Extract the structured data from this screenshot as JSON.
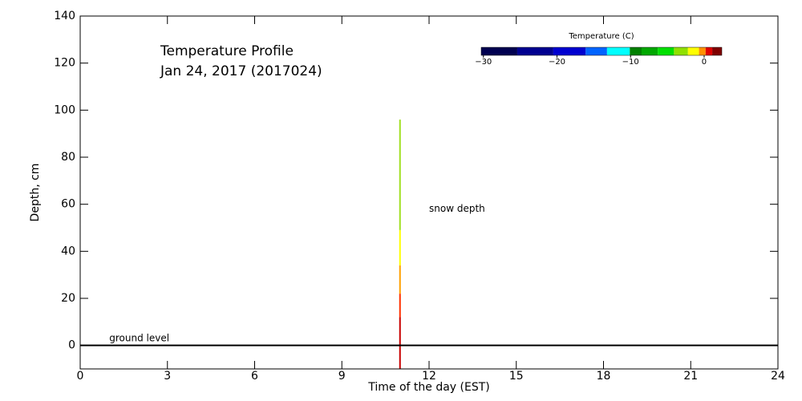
{
  "chart_data": {
    "type": "profile",
    "title": "Temperature Profile",
    "subtitle": "Jan 24, 2017 (2017024)",
    "x_label": "Time of the day (EST)",
    "y_label": "Depth, cm",
    "xlim": [
      0,
      24
    ],
    "xticks": [
      0,
      3,
      6,
      9,
      12,
      15,
      18,
      21,
      24
    ],
    "ylim": [
      -10,
      140
    ],
    "yticks": [
      0,
      20,
      40,
      60,
      80,
      100,
      120,
      140
    ],
    "ground_level": 0,
    "annotations": [
      {
        "text": "ground level",
        "x": 1,
        "y": 3
      },
      {
        "text": "snow depth",
        "x": 12,
        "y": 58
      }
    ],
    "profiles": [
      {
        "x": 11,
        "segments": [
          {
            "from": -10,
            "to": 12,
            "color": "#c80000"
          },
          {
            "from": 12,
            "to": 22,
            "color": "#ff3000"
          },
          {
            "from": 22,
            "to": 34,
            "color": "#ffa000"
          },
          {
            "from": 34,
            "to": 49,
            "color": "#ffff00"
          },
          {
            "from": 49,
            "to": 96,
            "color": "#a0e020"
          }
        ]
      }
    ],
    "colorbar": {
      "title": "Temperature (C)",
      "lim": [
        -30.3,
        2.4
      ],
      "ticks": [
        {
          "value": -30,
          "label": "−30"
        },
        {
          "value": -20,
          "label": "−20"
        },
        {
          "value": -10,
          "label": "−10"
        },
        0
      ],
      "bounds": [
        -30.3,
        -25.4,
        -20.5,
        -16.1,
        -13.2,
        -10.1,
        -8.5,
        -6.3,
        -4.1,
        -2.2,
        -0.7,
        0.2,
        1.1,
        2.4
      ],
      "colors": [
        "#000050",
        "#000090",
        "#0000d0",
        "#0064ff",
        "#00ffff",
        "#008000",
        "#00a800",
        "#00e000",
        "#90e000",
        "#ffff00",
        "#ff9000",
        "#e00000",
        "#800000"
      ]
    }
  }
}
